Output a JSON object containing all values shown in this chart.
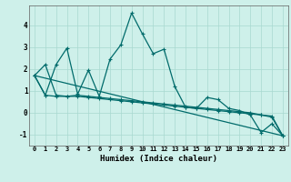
{
  "title": "",
  "xlabel": "Humidex (Indice chaleur)",
  "bg_color": "#cef0ea",
  "line_color": "#006b6b",
  "grid_color": "#a8d8d0",
  "xlim": [
    -0.5,
    23.5
  ],
  "ylim": [
    -1.5,
    4.9
  ],
  "xticks": [
    0,
    1,
    2,
    3,
    4,
    5,
    6,
    7,
    8,
    9,
    10,
    11,
    12,
    13,
    14,
    15,
    16,
    17,
    18,
    19,
    20,
    21,
    22,
    23
  ],
  "yticks": [
    -1,
    0,
    1,
    2,
    3,
    4
  ],
  "line1_x": [
    0,
    1,
    2,
    3,
    4,
    5,
    6,
    7,
    8,
    9,
    10,
    11,
    12,
    13,
    14,
    15,
    16,
    17,
    18,
    19,
    20,
    21,
    22,
    23
  ],
  "line1_y": [
    1.7,
    2.2,
    0.8,
    0.75,
    0.8,
    0.75,
    0.7,
    0.65,
    0.6,
    0.55,
    0.5,
    0.45,
    0.4,
    0.35,
    0.3,
    0.25,
    0.2,
    0.15,
    0.1,
    0.05,
    0.0,
    -0.1,
    -0.15,
    -1.05
  ],
  "line2_x": [
    0,
    1,
    2,
    3,
    4,
    5,
    6,
    7,
    8,
    9,
    10,
    11,
    12,
    13,
    14,
    15,
    16,
    17,
    18,
    19,
    20,
    21,
    22,
    23
  ],
  "line2_y": [
    1.7,
    0.8,
    0.75,
    0.75,
    0.75,
    0.7,
    0.65,
    0.6,
    0.55,
    0.5,
    0.45,
    0.4,
    0.35,
    0.3,
    0.25,
    0.2,
    0.15,
    0.1,
    0.05,
    0.0,
    -0.05,
    -0.1,
    -0.2,
    -1.05
  ],
  "line3_x": [
    0,
    1,
    2,
    3,
    4,
    5,
    6,
    7,
    8,
    9,
    10,
    11,
    12,
    13,
    14,
    15,
    16,
    17,
    18,
    19,
    20,
    21,
    22,
    23
  ],
  "line3_y": [
    1.7,
    0.8,
    2.2,
    2.95,
    0.85,
    1.95,
    0.75,
    2.45,
    3.1,
    4.55,
    3.6,
    2.7,
    2.9,
    1.2,
    0.25,
    0.2,
    0.7,
    0.6,
    0.2,
    0.1,
    -0.1,
    -0.9,
    -0.5,
    -1.05
  ],
  "line4_x": [
    0,
    23
  ],
  "line4_y": [
    1.7,
    -1.05
  ]
}
